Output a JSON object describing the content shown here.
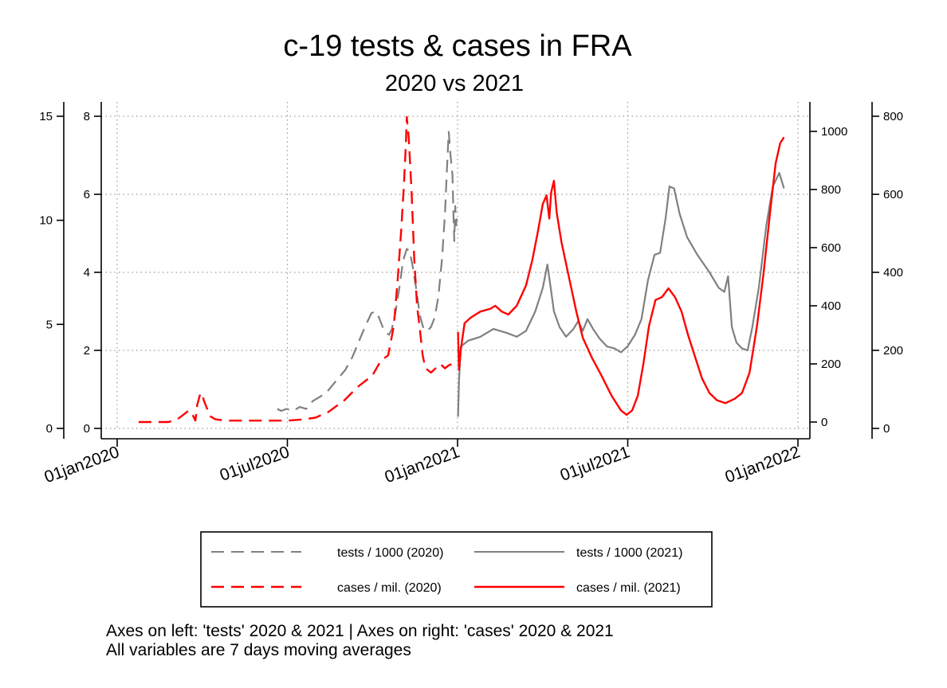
{
  "chart_data": {
    "type": "line",
    "title": "c-19 tests & cases in FRA",
    "subtitle": "2020 vs 2021",
    "x_ticks": [
      "01jan2020",
      "01jul2020",
      "01jan2021",
      "01jul2021",
      "01jan2022"
    ],
    "x_range": [
      "2020-01-01",
      "2022-01-01"
    ],
    "axes": {
      "left_outer": {
        "ticks": [
          0,
          5,
          10,
          15
        ],
        "range": [
          0,
          15
        ]
      },
      "left_inner": {
        "ticks": [
          0,
          2,
          4,
          6,
          8
        ],
        "range": [
          0,
          8
        ]
      },
      "right_inner": {
        "ticks": [
          0,
          200,
          400,
          600,
          800,
          1000
        ],
        "range": [
          0,
          1100
        ]
      },
      "right_outer": {
        "ticks": [
          0,
          200,
          400,
          600,
          800
        ],
        "range": [
          0,
          800
        ]
      }
    },
    "grid": true,
    "legend_position": "bottom",
    "series": [
      {
        "name": "tests / 1000 (2020)",
        "color": "#808080",
        "dash": "dashed",
        "axis": "left_inner",
        "points": [
          [
            "2020-06-21",
            0.5
          ],
          [
            "2020-06-25",
            0.45
          ],
          [
            "2020-07-01",
            0.5
          ],
          [
            "2020-07-08",
            0.45
          ],
          [
            "2020-07-15",
            0.55
          ],
          [
            "2020-07-22",
            0.5
          ],
          [
            "2020-07-29",
            0.7
          ],
          [
            "2020-08-05",
            0.8
          ],
          [
            "2020-08-12",
            0.9
          ],
          [
            "2020-08-19",
            1.1
          ],
          [
            "2020-08-26",
            1.3
          ],
          [
            "2020-09-02",
            1.5
          ],
          [
            "2020-09-09",
            1.8
          ],
          [
            "2020-09-16",
            2.2
          ],
          [
            "2020-09-23",
            2.6
          ],
          [
            "2020-09-30",
            2.95
          ],
          [
            "2020-10-04",
            3.0
          ],
          [
            "2020-10-08",
            2.85
          ],
          [
            "2020-10-12",
            2.6
          ],
          [
            "2020-10-16",
            2.45
          ],
          [
            "2020-10-19",
            2.4
          ],
          [
            "2020-10-22",
            2.55
          ],
          [
            "2020-10-26",
            3.0
          ],
          [
            "2020-10-30",
            3.6
          ],
          [
            "2020-11-03",
            4.3
          ],
          [
            "2020-11-07",
            4.6
          ],
          [
            "2020-11-10",
            4.55
          ],
          [
            "2020-11-13",
            4.2
          ],
          [
            "2020-11-17",
            3.6
          ],
          [
            "2020-11-21",
            2.9
          ],
          [
            "2020-11-25",
            2.55
          ],
          [
            "2020-11-29",
            2.5
          ],
          [
            "2020-12-03",
            2.6
          ],
          [
            "2020-12-07",
            2.85
          ],
          [
            "2020-12-11",
            3.4
          ],
          [
            "2020-12-15",
            4.4
          ],
          [
            "2020-12-18",
            5.5
          ],
          [
            "2020-12-20",
            6.6
          ],
          [
            "2020-12-22",
            7.6
          ],
          [
            "2020-12-24",
            7.0
          ],
          [
            "2020-12-26",
            6.5
          ],
          [
            "2020-12-27",
            5.6
          ],
          [
            "2020-12-28",
            4.8
          ],
          [
            "2020-12-29",
            5.7
          ],
          [
            "2020-12-30",
            5.2
          ],
          [
            "2020-12-31",
            5.5
          ]
        ]
      },
      {
        "name": "cases / mil. (2020)",
        "color": "#ff0000",
        "dash": "dashed",
        "axis": "right_inner",
        "points": [
          [
            "2020-01-24",
            0
          ],
          [
            "2020-02-10",
            0
          ],
          [
            "2020-02-25",
            0
          ],
          [
            "2020-03-05",
            8
          ],
          [
            "2020-03-12",
            25
          ],
          [
            "2020-03-18",
            40
          ],
          [
            "2020-03-22",
            25
          ],
          [
            "2020-03-25",
            5
          ],
          [
            "2020-03-27",
            60
          ],
          [
            "2020-03-30",
            95
          ],
          [
            "2020-04-01",
            100
          ],
          [
            "2020-04-03",
            75
          ],
          [
            "2020-04-06",
            50
          ],
          [
            "2020-04-10",
            20
          ],
          [
            "2020-04-15",
            10
          ],
          [
            "2020-04-25",
            5
          ],
          [
            "2020-05-15",
            5
          ],
          [
            "2020-06-10",
            5
          ],
          [
            "2020-07-01",
            5
          ],
          [
            "2020-07-15",
            8
          ],
          [
            "2020-08-01",
            15
          ],
          [
            "2020-08-15",
            35
          ],
          [
            "2020-09-01",
            75
          ],
          [
            "2020-09-15",
            120
          ],
          [
            "2020-10-01",
            160
          ],
          [
            "2020-10-10",
            210
          ],
          [
            "2020-10-18",
            230
          ],
          [
            "2020-10-24",
            330
          ],
          [
            "2020-10-28",
            480
          ],
          [
            "2020-11-01",
            660
          ],
          [
            "2020-11-04",
            820
          ],
          [
            "2020-11-06",
            960
          ],
          [
            "2020-11-07",
            1050
          ],
          [
            "2020-11-09",
            980
          ],
          [
            "2020-11-12",
            800
          ],
          [
            "2020-11-15",
            560
          ],
          [
            "2020-11-18",
            400
          ],
          [
            "2020-11-21",
            320
          ],
          [
            "2020-11-24",
            230
          ],
          [
            "2020-11-27",
            185
          ],
          [
            "2020-12-03",
            170
          ],
          [
            "2020-12-08",
            185
          ],
          [
            "2020-12-13",
            200
          ],
          [
            "2020-12-18",
            185
          ],
          [
            "2020-12-22",
            195
          ],
          [
            "2020-12-26",
            200
          ],
          [
            "2020-12-30",
            190
          ]
        ]
      },
      {
        "name": "tests / 1000 (2021)",
        "color": "#808080",
        "dash": "solid",
        "axis": "left_inner",
        "points": [
          [
            "2021-01-01",
            0.3
          ],
          [
            "2021-01-02",
            1.2
          ],
          [
            "2021-01-04",
            2.1
          ],
          [
            "2021-01-12",
            2.25
          ],
          [
            "2021-01-25",
            2.35
          ],
          [
            "2021-02-08",
            2.55
          ],
          [
            "2021-02-22",
            2.45
          ],
          [
            "2021-03-05",
            2.35
          ],
          [
            "2021-03-15",
            2.5
          ],
          [
            "2021-03-25",
            3.0
          ],
          [
            "2021-04-02",
            3.6
          ],
          [
            "2021-04-07",
            4.2
          ],
          [
            "2021-04-10",
            3.7
          ],
          [
            "2021-04-14",
            3.0
          ],
          [
            "2021-04-20",
            2.6
          ],
          [
            "2021-04-27",
            2.35
          ],
          [
            "2021-05-05",
            2.55
          ],
          [
            "2021-05-10",
            2.75
          ],
          [
            "2021-05-15",
            2.5
          ],
          [
            "2021-05-20",
            2.8
          ],
          [
            "2021-05-26",
            2.55
          ],
          [
            "2021-06-02",
            2.3
          ],
          [
            "2021-06-10",
            2.1
          ],
          [
            "2021-06-18",
            2.05
          ],
          [
            "2021-06-25",
            1.95
          ],
          [
            "2021-07-02",
            2.1
          ],
          [
            "2021-07-10",
            2.4
          ],
          [
            "2021-07-17",
            2.8
          ],
          [
            "2021-07-24",
            3.8
          ],
          [
            "2021-07-31",
            4.45
          ],
          [
            "2021-08-06",
            4.5
          ],
          [
            "2021-08-12",
            5.4
          ],
          [
            "2021-08-16",
            6.2
          ],
          [
            "2021-08-21",
            6.15
          ],
          [
            "2021-08-27",
            5.5
          ],
          [
            "2021-09-04",
            4.9
          ],
          [
            "2021-09-15",
            4.45
          ],
          [
            "2021-09-28",
            4.0
          ],
          [
            "2021-10-08",
            3.6
          ],
          [
            "2021-10-14",
            3.5
          ],
          [
            "2021-10-18",
            3.9
          ],
          [
            "2021-10-22",
            2.6
          ],
          [
            "2021-10-27",
            2.2
          ],
          [
            "2021-11-02",
            2.05
          ],
          [
            "2021-11-08",
            2.0
          ],
          [
            "2021-11-13",
            2.6
          ],
          [
            "2021-11-20",
            3.6
          ],
          [
            "2021-11-28",
            5.2
          ],
          [
            "2021-12-05",
            6.2
          ],
          [
            "2021-12-12",
            6.55
          ],
          [
            "2021-12-17",
            6.15
          ]
        ]
      },
      {
        "name": "cases / mil. (2021)",
        "color": "#ff0000",
        "dash": "solid",
        "axis": "right_inner",
        "points": [
          [
            "2021-01-01",
            310
          ],
          [
            "2021-01-02",
            180
          ],
          [
            "2021-01-04",
            250
          ],
          [
            "2021-01-08",
            340
          ],
          [
            "2021-01-15",
            360
          ],
          [
            "2021-01-25",
            380
          ],
          [
            "2021-02-05",
            390
          ],
          [
            "2021-02-10",
            400
          ],
          [
            "2021-02-17",
            380
          ],
          [
            "2021-02-24",
            370
          ],
          [
            "2021-03-05",
            400
          ],
          [
            "2021-03-15",
            470
          ],
          [
            "2021-03-22",
            560
          ],
          [
            "2021-03-28",
            660
          ],
          [
            "2021-04-02",
            750
          ],
          [
            "2021-04-06",
            780
          ],
          [
            "2021-04-09",
            700
          ],
          [
            "2021-04-11",
            790
          ],
          [
            "2021-04-14",
            830
          ],
          [
            "2021-04-17",
            720
          ],
          [
            "2021-04-22",
            620
          ],
          [
            "2021-04-30",
            500
          ],
          [
            "2021-05-08",
            380
          ],
          [
            "2021-05-15",
            290
          ],
          [
            "2021-05-25",
            220
          ],
          [
            "2021-06-04",
            160
          ],
          [
            "2021-06-15",
            90
          ],
          [
            "2021-06-25",
            40
          ],
          [
            "2021-07-01",
            25
          ],
          [
            "2021-07-07",
            40
          ],
          [
            "2021-07-13",
            90
          ],
          [
            "2021-07-19",
            200
          ],
          [
            "2021-07-25",
            330
          ],
          [
            "2021-08-01",
            420
          ],
          [
            "2021-08-08",
            430
          ],
          [
            "2021-08-15",
            460
          ],
          [
            "2021-08-22",
            430
          ],
          [
            "2021-08-29",
            380
          ],
          [
            "2021-09-05",
            300
          ],
          [
            "2021-09-12",
            230
          ],
          [
            "2021-09-20",
            150
          ],
          [
            "2021-09-28",
            100
          ],
          [
            "2021-10-06",
            75
          ],
          [
            "2021-10-15",
            65
          ],
          [
            "2021-10-25",
            80
          ],
          [
            "2021-11-02",
            100
          ],
          [
            "2021-11-10",
            170
          ],
          [
            "2021-11-18",
            330
          ],
          [
            "2021-11-25",
            510
          ],
          [
            "2021-12-02",
            720
          ],
          [
            "2021-12-08",
            890
          ],
          [
            "2021-12-13",
            960
          ],
          [
            "2021-12-17",
            980
          ]
        ]
      }
    ]
  },
  "legend": {
    "items": [
      "tests / 1000 (2020)",
      "tests / 1000 (2021)",
      "cases / mil. (2020)",
      "cases / mil. (2021)"
    ]
  },
  "notes": {
    "line1": "Axes on left: 'tests' 2020 & 2021 | Axes on right: 'cases' 2020 & 2021",
    "line2": "All variables are 7 days moving averages"
  }
}
